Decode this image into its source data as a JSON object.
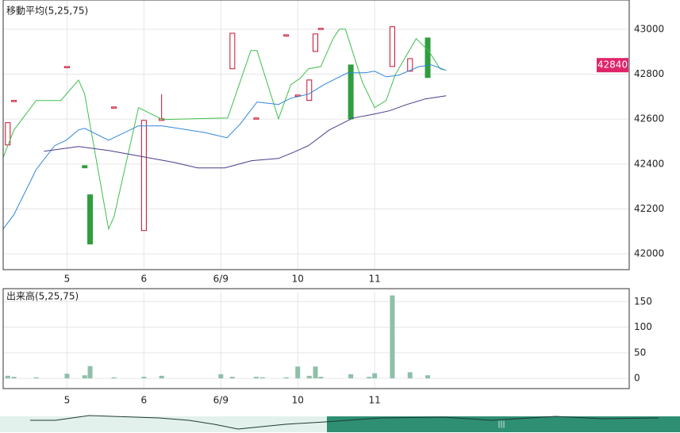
{
  "chart_data": [
    {
      "type": "candlestick",
      "title": "移動平均(5,25,75)",
      "xlim": [
        4.17,
        12.31
      ],
      "ylim": [
        41930,
        43130
      ],
      "xticks": [
        5,
        6,
        {
          "value": 7,
          "label": "6/9"
        },
        {
          "value": 8,
          "label": "10"
        },
        {
          "value": 9,
          "label": "11"
        }
      ],
      "yticks": [
        42000,
        42200,
        42400,
        42600,
        42800,
        43000
      ],
      "grid": true,
      "up_color": "#c8102e",
      "down_color": "#2e9e3e",
      "x": [
        4.23,
        4.31,
        5.0,
        5.23,
        5.3,
        5.61,
        6.0,
        6.23,
        7.15,
        7.46,
        7.85,
        8.0,
        8.15,
        8.23,
        8.3,
        8.69,
        9.23,
        9.46,
        9.69
      ],
      "open": [
        42485,
        42683,
        42834,
        42393,
        42263,
        42654,
        42104,
        42594,
        42824,
        42605,
        42975,
        42707,
        42683,
        42901,
        43004,
        42841,
        42834,
        42813,
        42961
      ],
      "high": [
        42584,
        42683,
        42834,
        42393,
        42263,
        42654,
        42594,
        42711,
        42982,
        42605,
        42975,
        42707,
        42774,
        42979,
        43004,
        42841,
        43011,
        42869,
        42961
      ],
      "low": [
        42485,
        42683,
        42834,
        42383,
        42044,
        42654,
        42104,
        42594,
        42824,
        42605,
        42975,
        42707,
        42683,
        42901,
        43004,
        42601,
        42834,
        42813,
        42785
      ],
      "close": [
        42584,
        42683,
        42834,
        42383,
        42044,
        42654,
        42594,
        42601,
        42982,
        42605,
        42975,
        42707,
        42774,
        42979,
        43004,
        42601,
        43011,
        42869,
        42785
      ],
      "series": [
        {
          "color": "#3fbf4f",
          "x": [
            4.17,
            4.31,
            4.6,
            4.92,
            5.15,
            5.23,
            5.54,
            5.61,
            5.93,
            6.24,
            7.09,
            7.39,
            7.47,
            7.75,
            7.91,
            8.03,
            8.14,
            8.3,
            8.46,
            8.54,
            8.62,
            8.84,
            9.0,
            9.15,
            9.27,
            9.54,
            9.7,
            9.85,
            9.93
          ],
          "values": [
            42429,
            42552,
            42683,
            42683,
            42774,
            42711,
            42111,
            42164,
            42651,
            42598,
            42605,
            42905,
            42905,
            42601,
            42753,
            42781,
            42824,
            42834,
            42958,
            43000,
            43000,
            42764,
            42651,
            42683,
            42799,
            42958,
            42905,
            42824,
            42817
          ]
        },
        {
          "color": "#2f86d6",
          "x": [
            4.17,
            4.31,
            4.6,
            4.84,
            4.99,
            5.15,
            5.23,
            5.54,
            5.93,
            6.24,
            6.78,
            7.08,
            7.25,
            7.47,
            7.75,
            7.91,
            8.14,
            8.34,
            8.65,
            8.88,
            9.0,
            9.15,
            9.31,
            9.58,
            9.74,
            9.93
          ],
          "values": [
            42111,
            42175,
            42376,
            42482,
            42506,
            42552,
            42559,
            42506,
            42570,
            42570,
            42541,
            42517,
            42577,
            42676,
            42665,
            42693,
            42711,
            42753,
            42806,
            42806,
            42813,
            42788,
            42795,
            42834,
            42841,
            42817
          ]
        },
        {
          "color": "#4b3a8c",
          "x": [
            4.7,
            5.15,
            5.54,
            5.93,
            6.39,
            6.7,
            7.05,
            7.4,
            7.75,
            7.95,
            8.14,
            8.41,
            8.72,
            9.0,
            9.19,
            9.42,
            9.66,
            9.93
          ],
          "values": [
            42457,
            42478,
            42460,
            42436,
            42407,
            42383,
            42383,
            42415,
            42425,
            42453,
            42482,
            42552,
            42605,
            42623,
            42637,
            42665,
            42690,
            42704
          ]
        }
      ],
      "last_price": 42840,
      "last_price_color": "#e0246a"
    },
    {
      "type": "bar",
      "title": "出来高(5,25,75)",
      "xlim": [
        4.17,
        12.31
      ],
      "ylim": [
        -20,
        169
      ],
      "xticks": [
        5,
        6,
        {
          "value": 7,
          "label": "6/9"
        },
        {
          "value": 8,
          "label": "10"
        },
        {
          "value": 9,
          "label": "11"
        }
      ],
      "yticks": [
        0,
        50,
        100,
        150
      ],
      "grid": true,
      "color": "#8fbfa9",
      "x": [
        4.23,
        4.31,
        4.6,
        5.0,
        5.23,
        5.3,
        5.61,
        6.0,
        6.23,
        7.0,
        7.15,
        7.46,
        7.54,
        7.85,
        8.0,
        8.15,
        8.23,
        8.3,
        8.69,
        8.93,
        9.0,
        9.23,
        9.46,
        9.69
      ],
      "values": [
        5,
        3,
        2,
        9,
        6,
        24,
        2,
        3,
        5,
        8,
        3,
        3,
        2,
        2,
        23,
        5,
        23,
        3,
        8,
        3,
        10,
        162,
        12,
        6
      ]
    }
  ]
}
